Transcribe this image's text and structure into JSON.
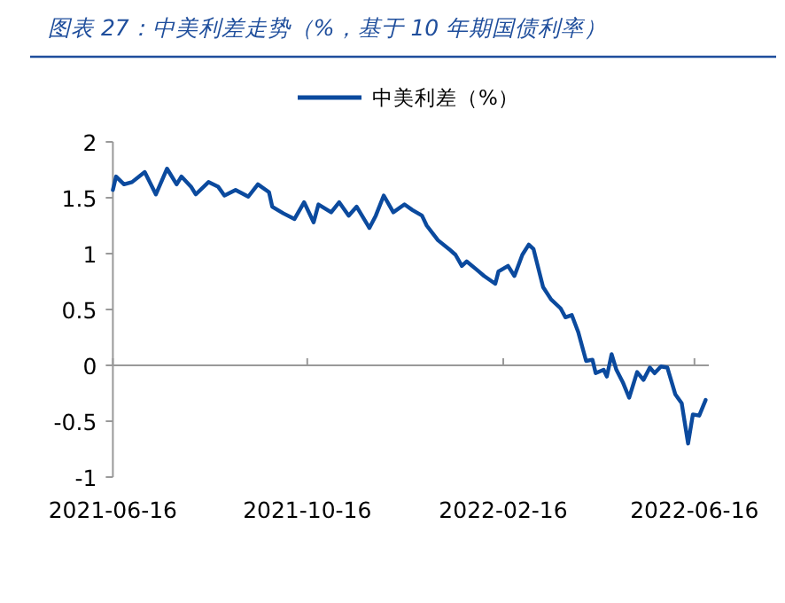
{
  "chart_data": {
    "type": "line",
    "title": "图表 27：中美利差走势（%，基于 10 年期国债利率）",
    "x": [
      "2021-06-16",
      "2021-06-18",
      "2021-06-23",
      "2021-06-28",
      "2021-07-06",
      "2021-07-13",
      "2021-07-20",
      "2021-07-26",
      "2021-07-29",
      "2021-08-04",
      "2021-08-07",
      "2021-08-15",
      "2021-08-21",
      "2021-08-25",
      "2021-09-01",
      "2021-09-09",
      "2021-09-15",
      "2021-09-22",
      "2021-09-24",
      "2021-10-01",
      "2021-10-08",
      "2021-10-14",
      "2021-10-20",
      "2021-10-23",
      "2021-10-31",
      "2021-11-05",
      "2021-11-11",
      "2021-11-16",
      "2021-11-24",
      "2021-11-28",
      "2021-12-03",
      "2021-12-09",
      "2021-12-16",
      "2021-12-21",
      "2021-12-27",
      "2021-12-30",
      "2022-01-06",
      "2022-01-13",
      "2022-01-17",
      "2022-01-21",
      "2022-01-24",
      "2022-01-30",
      "2022-02-04",
      "2022-02-11",
      "2022-02-13",
      "2022-02-19",
      "2022-02-23",
      "2022-02-28",
      "2022-03-04",
      "2022-03-07",
      "2022-03-13",
      "2022-03-18",
      "2022-03-24",
      "2022-03-27",
      "2022-03-31",
      "2022-04-04",
      "2022-04-09",
      "2022-04-13",
      "2022-04-15",
      "2022-04-20",
      "2022-04-22",
      "2022-04-25",
      "2022-04-28",
      "2022-05-02",
      "2022-05-06",
      "2022-05-11",
      "2022-05-15",
      "2022-05-19",
      "2022-05-22",
      "2022-05-26",
      "2022-05-30",
      "2022-06-04",
      "2022-06-08",
      "2022-06-12",
      "2022-06-15",
      "2022-06-19",
      "2022-06-23"
    ],
    "series": [
      {
        "name": "中美利差（%）",
        "color": "#0b4a9e",
        "values": [
          1.57,
          1.69,
          1.62,
          1.64,
          1.73,
          1.53,
          1.76,
          1.62,
          1.69,
          1.6,
          1.53,
          1.64,
          1.6,
          1.52,
          1.57,
          1.51,
          1.62,
          1.55,
          1.42,
          1.36,
          1.31,
          1.46,
          1.28,
          1.44,
          1.37,
          1.46,
          1.34,
          1.42,
          1.23,
          1.34,
          1.52,
          1.37,
          1.44,
          1.39,
          1.34,
          1.25,
          1.12,
          1.04,
          0.99,
          0.89,
          0.93,
          0.86,
          0.8,
          0.73,
          0.84,
          0.89,
          0.8,
          0.99,
          1.08,
          1.04,
          0.7,
          0.59,
          0.51,
          0.43,
          0.45,
          0.3,
          0.04,
          0.05,
          -0.07,
          -0.04,
          -0.1,
          0.1,
          -0.04,
          -0.15,
          -0.29,
          -0.06,
          -0.13,
          -0.02,
          -0.07,
          -0.01,
          -0.02,
          -0.26,
          -0.34,
          -0.7,
          -0.44,
          -0.45,
          -0.31
        ]
      }
    ],
    "xlim": [
      "2021-06-16",
      "2022-06-25"
    ],
    "xticks": [
      "2021-06-16",
      "2021-10-16",
      "2022-02-16",
      "2022-06-16"
    ],
    "ylim": [
      -1,
      2
    ],
    "yticks": [
      {
        "value": -1,
        "label": "-1"
      },
      {
        "value": -0.5,
        "label": "-0.5"
      },
      0,
      {
        "value": 0.5,
        "label": "0.5"
      },
      1,
      {
        "value": 1.5,
        "label": "1.5"
      },
      2
    ],
    "legend": "top"
  }
}
